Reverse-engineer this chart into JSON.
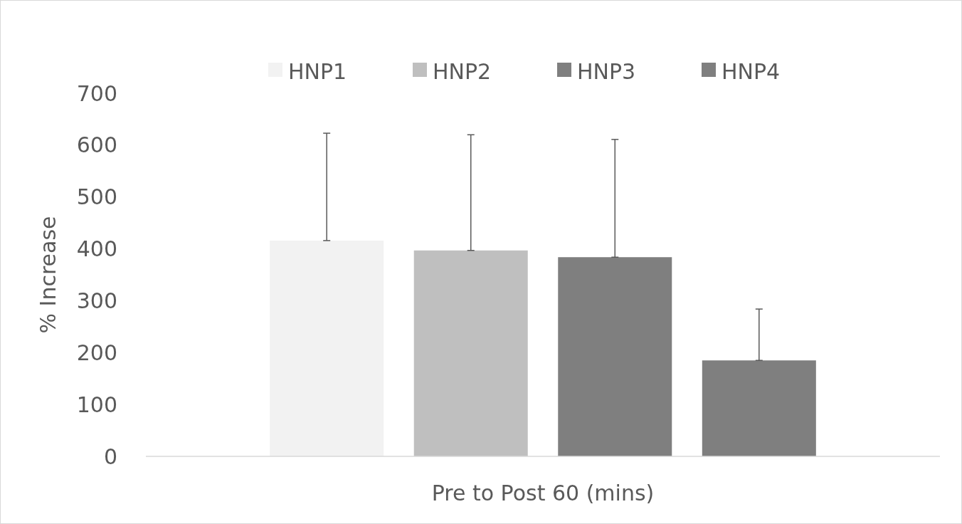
{
  "chart_data": {
    "type": "bar",
    "ylabel": "% Increase",
    "categories": [
      "Pre to Post 60 (mins)"
    ],
    "series": [
      {
        "name": "HNP1",
        "color": "#f2f2f2",
        "values": [
          416
        ],
        "errors": [
          [
            416,
            623
          ]
        ]
      },
      {
        "name": "HNP2",
        "color": "#bfbfbf",
        "values": [
          397
        ],
        "errors": [
          [
            397,
            620
          ]
        ]
      },
      {
        "name": "HNP3",
        "color": "#7f7f7f",
        "values": [
          384
        ],
        "errors": [
          [
            384,
            611
          ]
        ]
      },
      {
        "name": "HNP4",
        "color": "#7f7f7f",
        "values": [
          185
        ],
        "errors": [
          [
            185,
            284
          ]
        ]
      }
    ],
    "ylim": [
      0,
      700
    ],
    "yticks": [
      0,
      100,
      200,
      300,
      400,
      500,
      600,
      700
    ],
    "grid": false,
    "legend": "top"
  }
}
